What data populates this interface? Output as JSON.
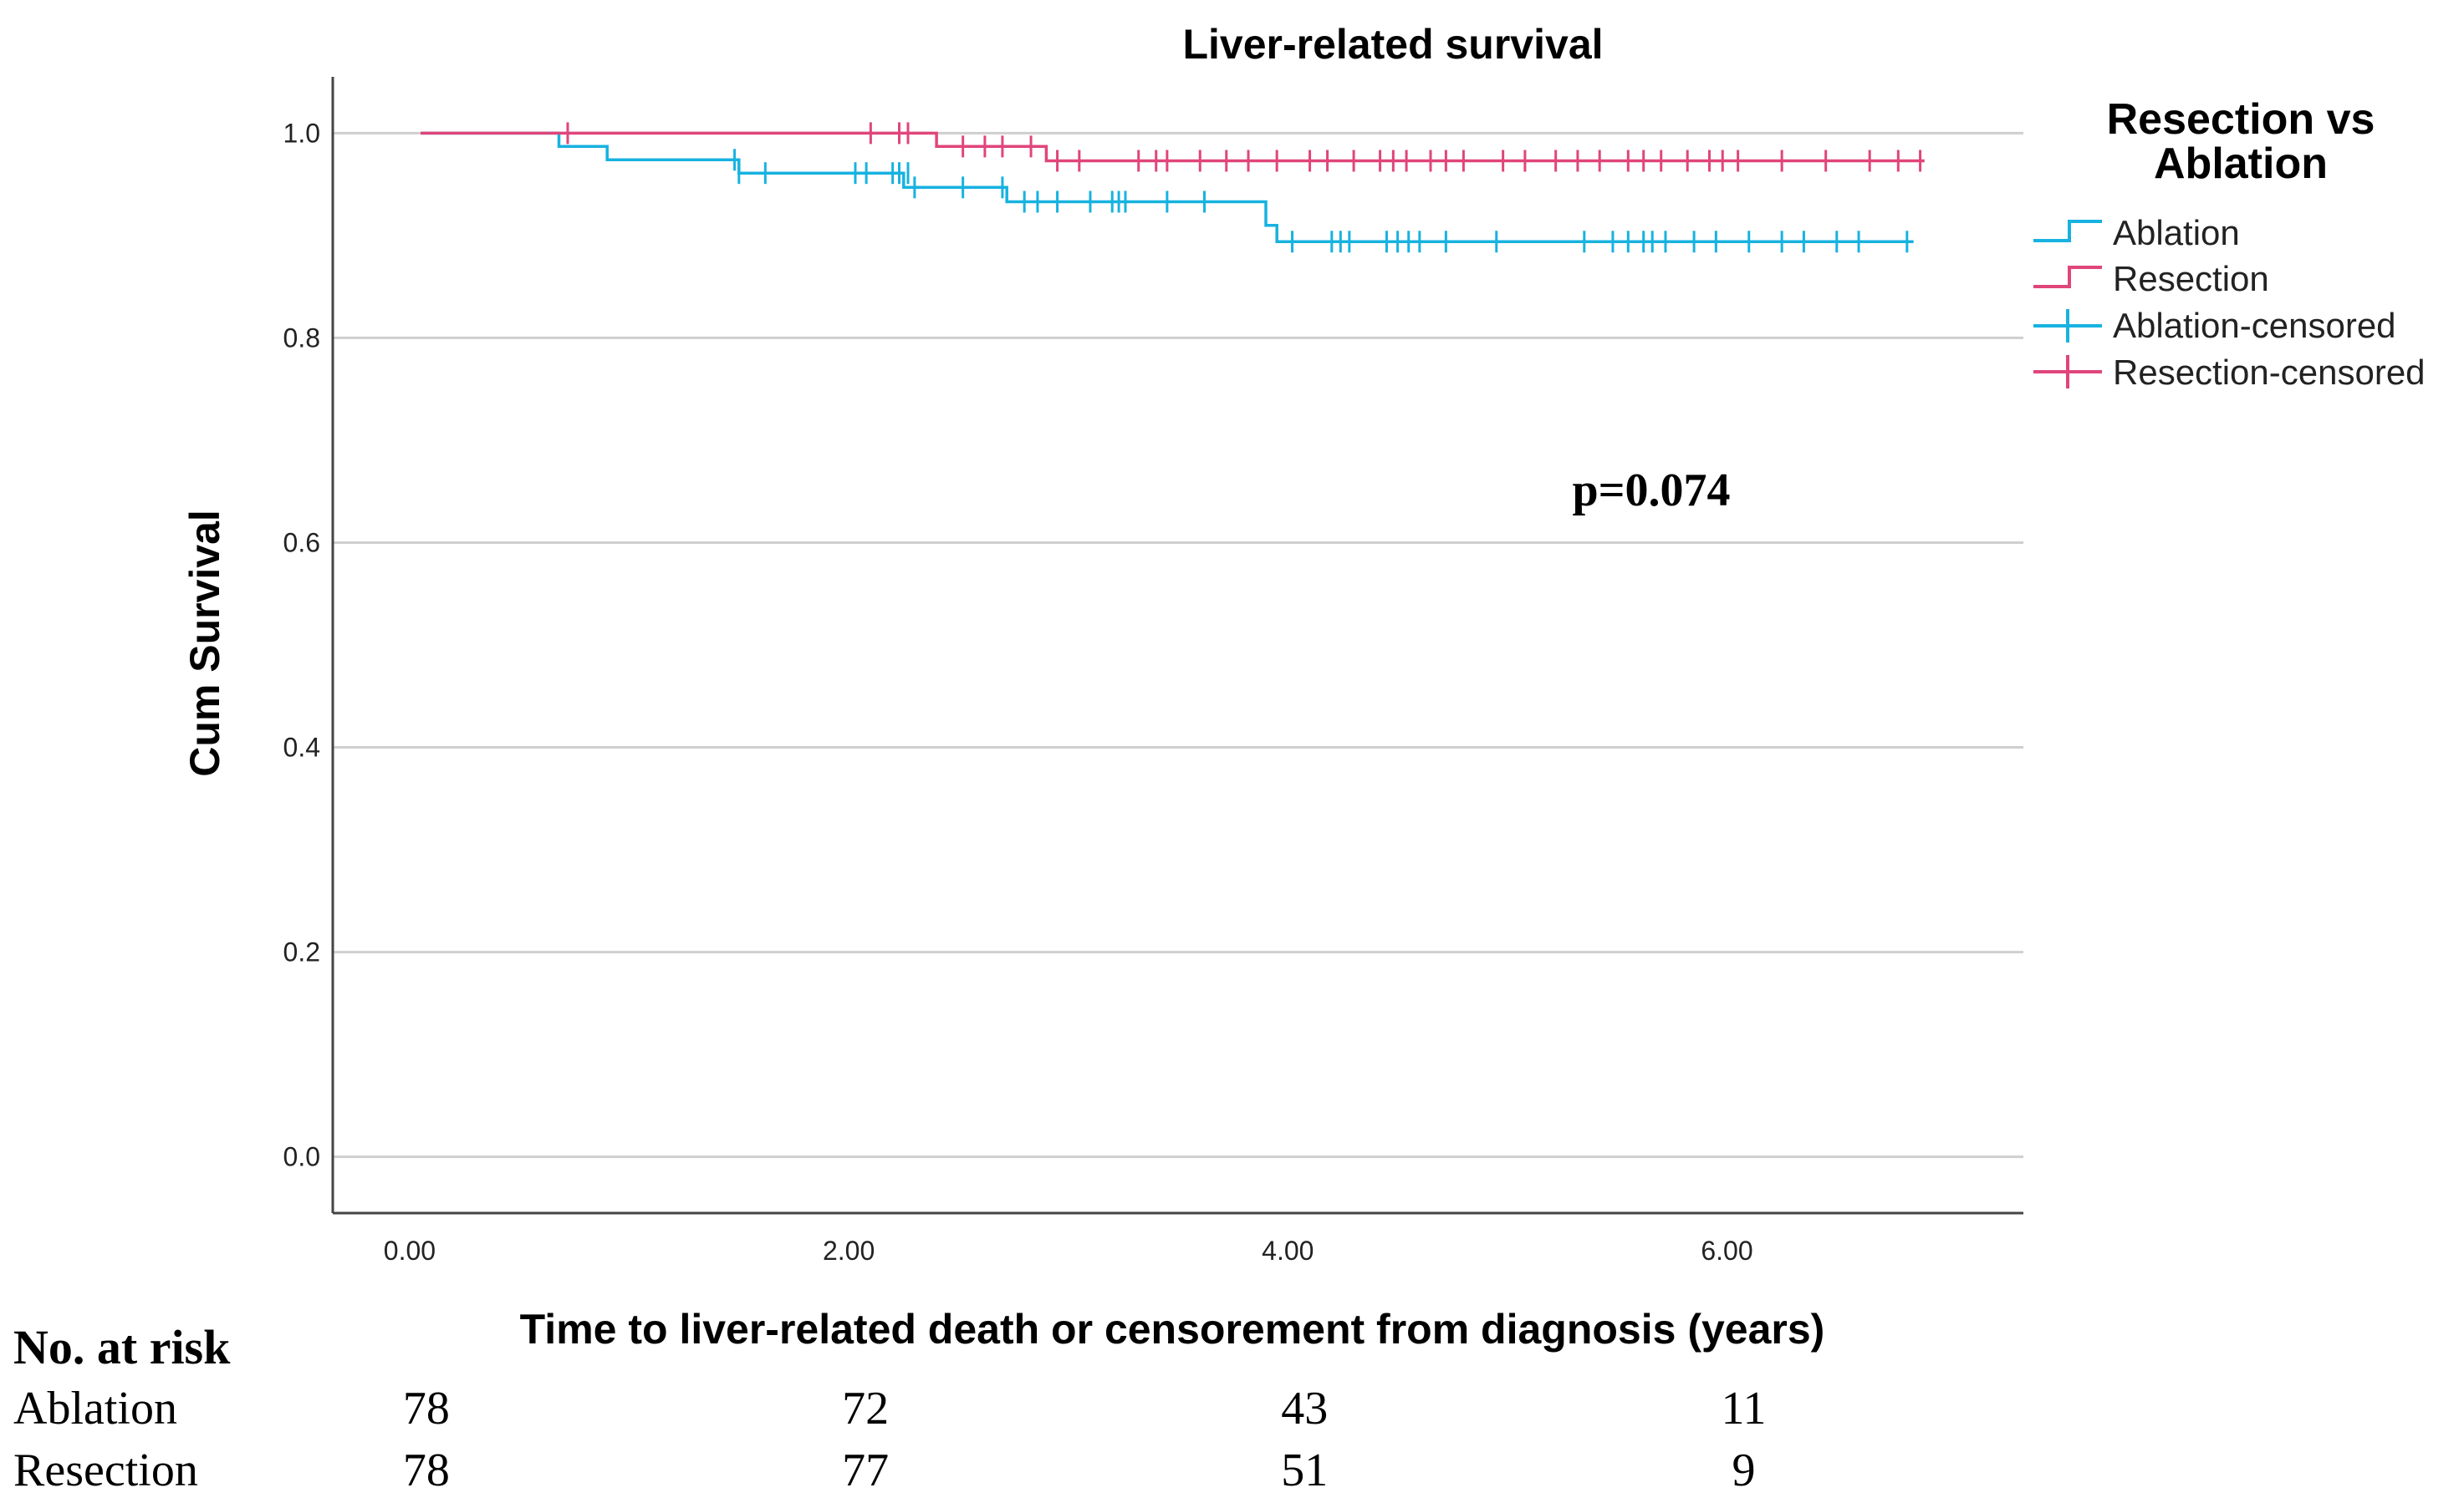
{
  "chart_data": {
    "type": "line",
    "subtype": "kaplan-meier",
    "title": "Liver-related survival",
    "xlabel": "Time to liver-related death or censorement from diagnosis (years)",
    "ylabel": "Cum Survival",
    "xlim": [
      -0.35,
      7.35
    ],
    "ylim": [
      -0.055,
      1.055
    ],
    "x_ticks": [
      0,
      2,
      4,
      6
    ],
    "x_tick_labels": [
      "0.00",
      "2.00",
      "4.00",
      "6.00"
    ],
    "y_ticks": [
      0,
      0.2,
      0.4,
      0.6,
      0.8,
      1.0
    ],
    "y_tick_labels": [
      "0.0",
      "0.2",
      "0.4",
      "0.6",
      "0.8",
      "1.0"
    ],
    "grid": "horizontal",
    "annotation": "p=0.074",
    "legend": {
      "title": "Resection vs Ablation",
      "title_lines": [
        "Resection vs",
        "Ablation"
      ],
      "position": "top-right",
      "entries": [
        "Ablation",
        "Resection",
        "Ablation-censored",
        "Resection-censored"
      ]
    },
    "series": [
      {
        "name": "Ablation",
        "color": "#17b2e0",
        "steps": [
          [
            0.05,
            1.0
          ],
          [
            0.68,
            0.987
          ],
          [
            0.9,
            0.974
          ],
          [
            1.5,
            0.961
          ],
          [
            2.25,
            0.947
          ],
          [
            2.72,
            0.933
          ],
          [
            3.9,
            0.91
          ],
          [
            3.95,
            0.894
          ],
          [
            6.85,
            0.894
          ]
        ],
        "censored": [
          [
            1.48,
            0.974
          ],
          [
            1.5,
            0.961
          ],
          [
            1.62,
            0.961
          ],
          [
            2.03,
            0.961
          ],
          [
            2.08,
            0.961
          ],
          [
            2.2,
            0.961
          ],
          [
            2.23,
            0.961
          ],
          [
            2.27,
            0.961
          ],
          [
            2.3,
            0.947
          ],
          [
            2.52,
            0.947
          ],
          [
            2.7,
            0.947
          ],
          [
            2.8,
            0.933
          ],
          [
            2.86,
            0.933
          ],
          [
            2.95,
            0.933
          ],
          [
            3.1,
            0.933
          ],
          [
            3.2,
            0.933
          ],
          [
            3.23,
            0.933
          ],
          [
            3.26,
            0.933
          ],
          [
            3.45,
            0.933
          ],
          [
            3.62,
            0.933
          ],
          [
            4.02,
            0.894
          ],
          [
            4.2,
            0.894
          ],
          [
            4.24,
            0.894
          ],
          [
            4.28,
            0.894
          ],
          [
            4.45,
            0.894
          ],
          [
            4.5,
            0.894
          ],
          [
            4.55,
            0.894
          ],
          [
            4.6,
            0.894
          ],
          [
            4.72,
            0.894
          ],
          [
            4.95,
            0.894
          ],
          [
            5.35,
            0.894
          ],
          [
            5.48,
            0.894
          ],
          [
            5.55,
            0.894
          ],
          [
            5.62,
            0.894
          ],
          [
            5.66,
            0.894
          ],
          [
            5.72,
            0.894
          ],
          [
            5.85,
            0.894
          ],
          [
            5.95,
            0.894
          ],
          [
            6.1,
            0.894
          ],
          [
            6.25,
            0.894
          ],
          [
            6.35,
            0.894
          ],
          [
            6.5,
            0.894
          ],
          [
            6.6,
            0.894
          ],
          [
            6.82,
            0.894
          ]
        ]
      },
      {
        "name": "Resection",
        "color": "#e0457b",
        "steps": [
          [
            0.05,
            1.0
          ],
          [
            2.4,
            0.987
          ],
          [
            2.9,
            0.973
          ],
          [
            6.9,
            0.973
          ]
        ],
        "censored": [
          [
            0.72,
            1.0
          ],
          [
            2.1,
            1.0
          ],
          [
            2.23,
            1.0
          ],
          [
            2.27,
            1.0
          ],
          [
            2.52,
            0.987
          ],
          [
            2.62,
            0.987
          ],
          [
            2.7,
            0.987
          ],
          [
            2.83,
            0.987
          ],
          [
            2.95,
            0.973
          ],
          [
            3.05,
            0.973
          ],
          [
            3.32,
            0.973
          ],
          [
            3.4,
            0.973
          ],
          [
            3.45,
            0.973
          ],
          [
            3.6,
            0.973
          ],
          [
            3.72,
            0.973
          ],
          [
            3.82,
            0.973
          ],
          [
            3.95,
            0.973
          ],
          [
            4.1,
            0.973
          ],
          [
            4.18,
            0.973
          ],
          [
            4.3,
            0.973
          ],
          [
            4.42,
            0.973
          ],
          [
            4.48,
            0.973
          ],
          [
            4.54,
            0.973
          ],
          [
            4.65,
            0.973
          ],
          [
            4.72,
            0.973
          ],
          [
            4.8,
            0.973
          ],
          [
            4.98,
            0.973
          ],
          [
            5.08,
            0.973
          ],
          [
            5.22,
            0.973
          ],
          [
            5.32,
            0.973
          ],
          [
            5.42,
            0.973
          ],
          [
            5.55,
            0.973
          ],
          [
            5.62,
            0.973
          ],
          [
            5.7,
            0.973
          ],
          [
            5.82,
            0.973
          ],
          [
            5.92,
            0.973
          ],
          [
            5.98,
            0.973
          ],
          [
            6.05,
            0.973
          ],
          [
            6.25,
            0.973
          ],
          [
            6.45,
            0.973
          ],
          [
            6.65,
            0.973
          ],
          [
            6.78,
            0.973
          ],
          [
            6.88,
            0.973
          ]
        ]
      }
    ]
  },
  "risk_table": {
    "header": "No. at risk",
    "time_points": [
      0,
      2,
      4,
      6
    ],
    "rows": [
      {
        "label": "Ablation",
        "values": [
          "78",
          "72",
          "43",
          "11"
        ]
      },
      {
        "label": "Resection",
        "values": [
          "78",
          "77",
          "51",
          "9"
        ]
      }
    ]
  }
}
